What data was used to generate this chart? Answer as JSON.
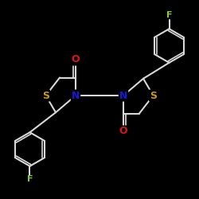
{
  "background_color": "#000000",
  "bond_color": "#d8d8d8",
  "atom_colors": {
    "S": "#c89818",
    "N": "#1818d8",
    "O": "#d81818",
    "F": "#80cc40",
    "C": "#d8d8d8"
  },
  "bond_width": 1.5,
  "figsize": [
    2.5,
    2.5
  ],
  "dpi": 100
}
